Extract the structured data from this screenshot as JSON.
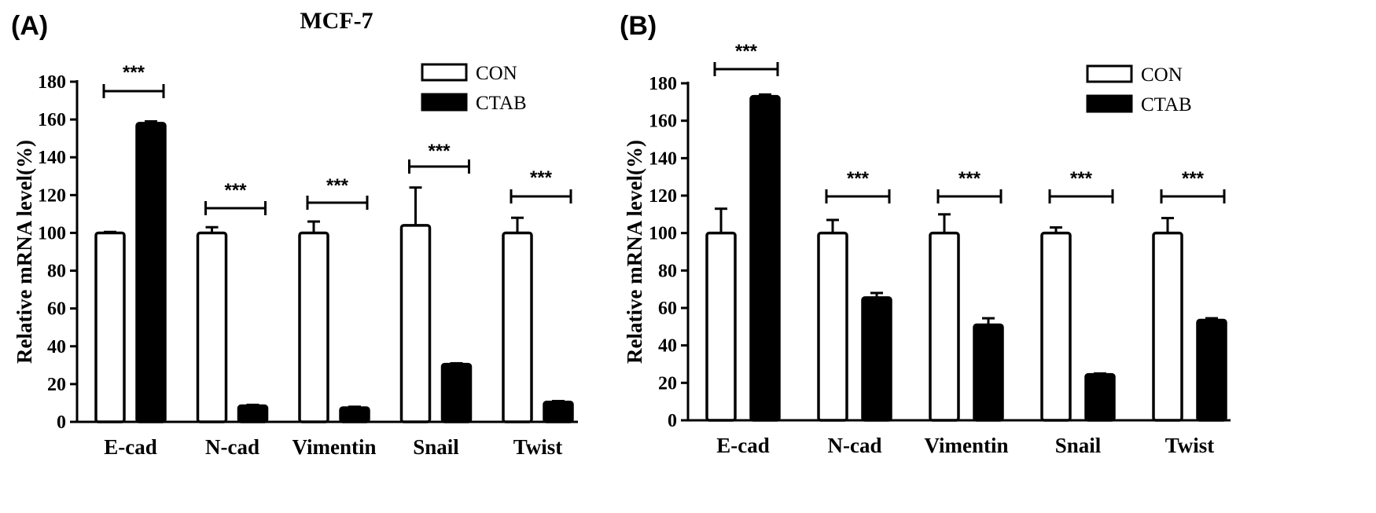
{
  "chart_data": [
    {
      "panel": "(A)",
      "type": "bar",
      "title": "MCF-7",
      "ylabel": "Relative mRNA level(%)",
      "xlabel": "",
      "ylim": [
        0,
        180
      ],
      "yticks": [
        "0",
        "20",
        "40",
        "60",
        "80",
        "100",
        "120",
        "140",
        "160",
        "180"
      ],
      "categories": [
        "E-cad",
        "N-cad",
        "Vimentin",
        "Snail",
        "Twist"
      ],
      "series": [
        {
          "name": "CON",
          "fill": "#ffffff",
          "values": [
            100,
            100,
            100,
            104,
            100
          ],
          "errors": [
            0.5,
            3,
            6,
            20,
            8
          ]
        },
        {
          "name": "CTAB",
          "fill": "#000000",
          "values": [
            158,
            8.5,
            7.5,
            30.5,
            10.5
          ],
          "errors": [
            1,
            0.5,
            0.5,
            0.5,
            0.5
          ]
        }
      ],
      "significance": [
        "***",
        "***",
        "***",
        "***",
        "***"
      ],
      "legend": "top-right"
    },
    {
      "panel": "(B)",
      "type": "bar",
      "title": "",
      "ylabel": "Relative mRNA level(%)",
      "xlabel": "",
      "ylim": [
        0,
        180
      ],
      "yticks": [
        "0",
        "20",
        "40",
        "60",
        "80",
        "100",
        "120",
        "140",
        "160",
        "180"
      ],
      "categories": [
        "E-cad",
        "N-cad",
        "Vimentin",
        "Snail",
        "Twist"
      ],
      "series": [
        {
          "name": "CON",
          "fill": "#ffffff",
          "values": [
            100,
            100,
            100,
            100,
            100
          ],
          "errors": [
            13,
            7,
            10,
            3,
            8
          ]
        },
        {
          "name": "CTAB",
          "fill": "#000000",
          "values": [
            173,
            65.5,
            51,
            24.5,
            53.5
          ],
          "errors": [
            1,
            2.5,
            3.5,
            0.5,
            1
          ]
        }
      ],
      "significance": [
        "***",
        "***",
        "***",
        "***",
        "***"
      ],
      "legend": "top-right"
    }
  ]
}
